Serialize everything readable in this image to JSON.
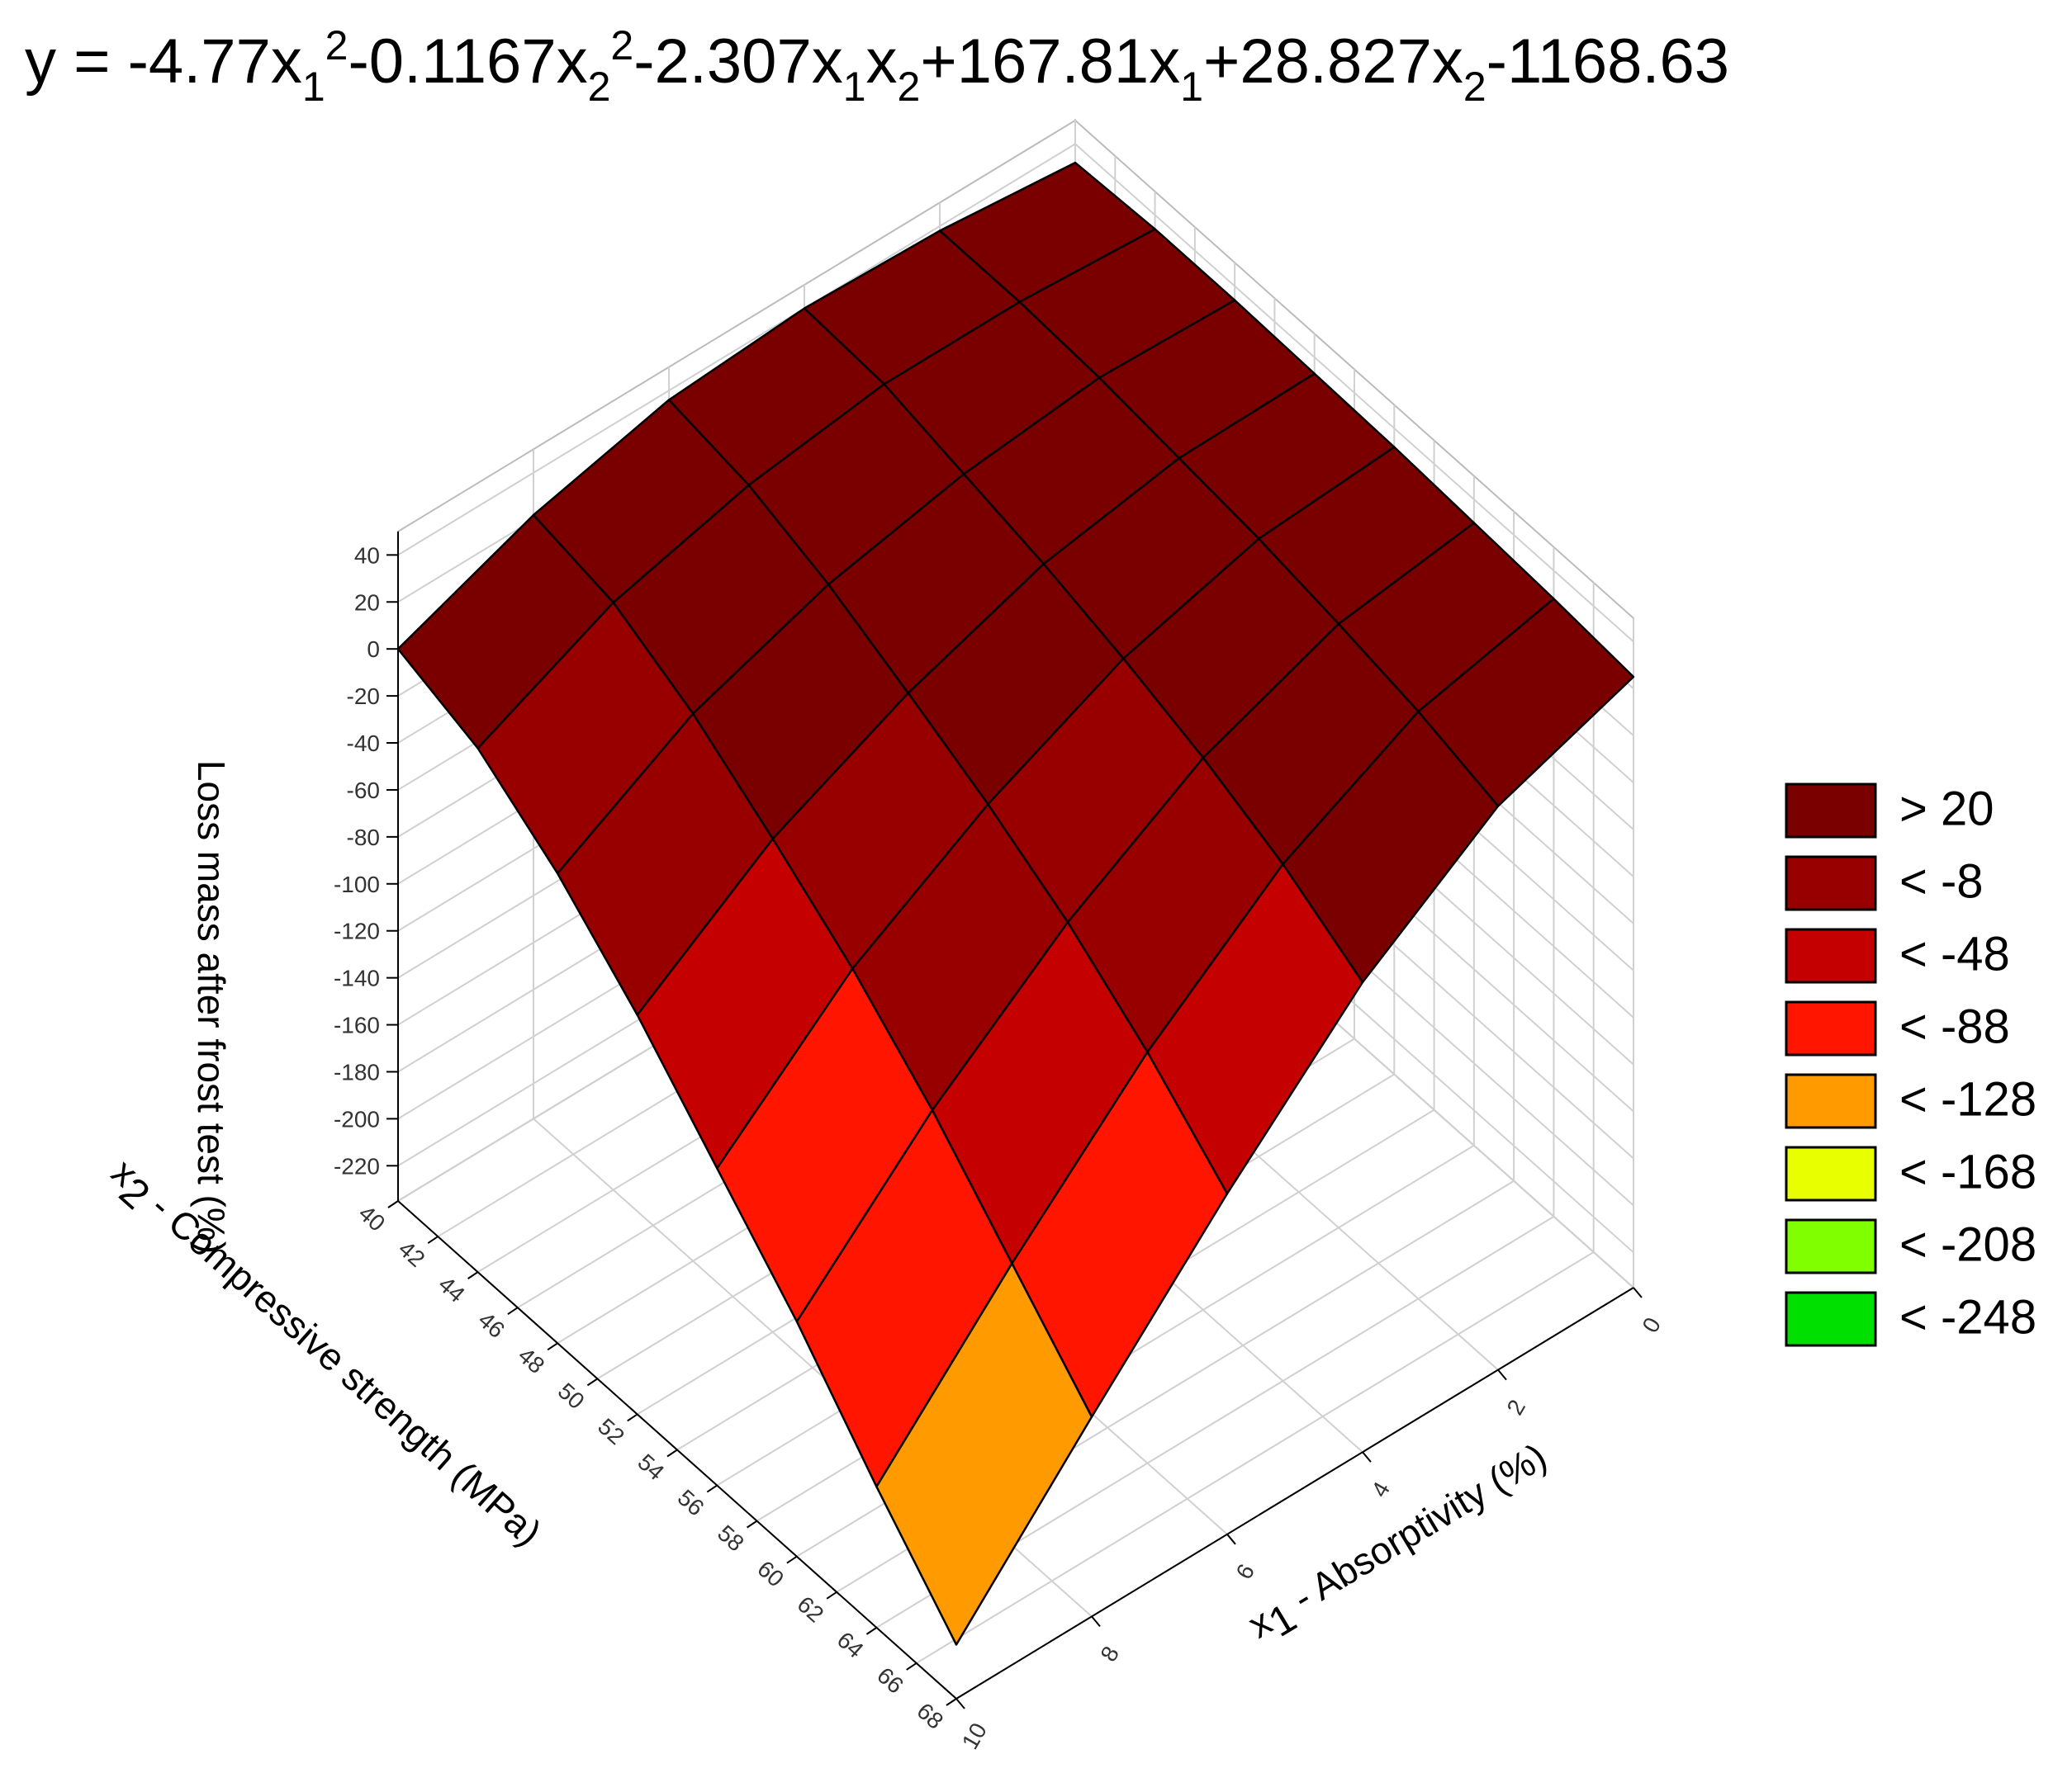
{
  "chart_data": {
    "type": "surface",
    "title_parts": [
      "y = -4.77x",
      "1",
      "2",
      "-0.1167x",
      "2",
      "2",
      "-2.307x",
      "1",
      "x",
      "2",
      "+167.81x",
      "1",
      "+28.827x",
      "2",
      "-1168.63"
    ],
    "x1_label_parts": [
      "x",
      "1",
      " - Absorptivity (%)"
    ],
    "x2_label_parts": [
      "x",
      "2",
      " - Compressive strength (MPa)"
    ],
    "z_label": "Loss mass after frost test (%)",
    "x1": [
      0,
      2,
      4,
      6,
      8,
      10
    ],
    "x2": [
      40,
      44,
      48,
      52,
      56,
      60,
      64,
      68
    ],
    "z": [
      [
        32,
        38,
        40,
        36,
        22,
        0
      ],
      [
        34,
        38,
        38,
        30,
        15,
        -12
      ],
      [
        34,
        36,
        30,
        18,
        -2,
        -35
      ],
      [
        33,
        32,
        22,
        2,
        -25,
        -65
      ],
      [
        32,
        28,
        12,
        -15,
        -50,
        -100
      ],
      [
        30,
        22,
        0,
        -35,
        -80,
        -135
      ],
      [
        28,
        15,
        -15,
        -60,
        -115,
        -175
      ],
      [
        25,
        5,
        -35,
        -90,
        -150,
        -212
      ]
    ],
    "x1lim": [
      0,
      10
    ],
    "x1ticks": [
      0,
      2,
      4,
      6,
      8,
      10
    ],
    "x2lim": [
      40,
      68
    ],
    "x2ticks": [
      40,
      42,
      44,
      46,
      48,
      50,
      52,
      54,
      56,
      58,
      60,
      62,
      64,
      66,
      68
    ],
    "zlim": [
      -235,
      50
    ],
    "zticks": [
      -220,
      -200,
      -180,
      -160,
      -140,
      -120,
      -100,
      -80,
      -60,
      -40,
      -20,
      0,
      20,
      40
    ],
    "grid": true,
    "legend": [
      {
        "value": 20,
        "label": "> 20",
        "color": "#7a0000"
      },
      {
        "value": -8,
        "label": "< -8",
        "color": "#980000"
      },
      {
        "value": -48,
        "label": "< -48",
        "color": "#c40000"
      },
      {
        "value": -88,
        "label": "< -88",
        "color": "#ff1500"
      },
      {
        "value": -128,
        "label": "< -128",
        "color": "#ff9a00"
      },
      {
        "value": -168,
        "label": "< -168",
        "color": "#e8ff00"
      },
      {
        "value": -208,
        "label": "< -208",
        "color": "#80ff00"
      },
      {
        "value": -248,
        "label": "< -248",
        "color": "#00e000"
      }
    ]
  }
}
